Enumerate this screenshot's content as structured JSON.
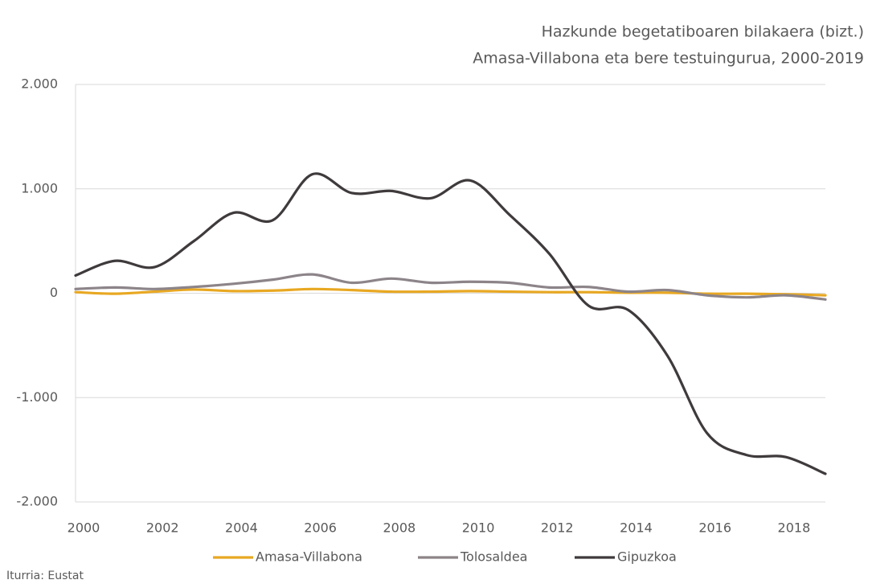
{
  "chart_data": {
    "type": "line",
    "title": "Hazkunde begetatiboaren bilakaera (bizt.)",
    "subtitle": "Amasa-Villabona eta bere testuingurua, 2000-2019",
    "source": "Iturria: Eustat",
    "x": [
      2000,
      2001,
      2002,
      2003,
      2004,
      2005,
      2006,
      2007,
      2008,
      2009,
      2010,
      2011,
      2012,
      2013,
      2014,
      2015,
      2016,
      2017,
      2018,
      2019
    ],
    "xlim": [
      2000,
      2019
    ],
    "xticks": [
      2000,
      2002,
      2004,
      2006,
      2008,
      2010,
      2012,
      2014,
      2016,
      2018
    ],
    "ylim": [
      -2000,
      2000
    ],
    "yticks": [
      {
        "value": -2000,
        "label": "-2.000"
      },
      {
        "value": -1000,
        "label": "-1.000"
      },
      0,
      {
        "value": 1000,
        "label": "1.000"
      },
      {
        "value": 2000,
        "label": "2.000"
      }
    ],
    "grid": true,
    "smooth": true,
    "legend": "bottom",
    "series": [
      {
        "name": "Amasa-Villabona",
        "color": "#e8a822",
        "values": [
          10,
          -5,
          15,
          35,
          20,
          25,
          40,
          30,
          15,
          15,
          20,
          15,
          10,
          10,
          5,
          5,
          -5,
          -5,
          -10,
          -20
        ]
      },
      {
        "name": "Tolosaldea",
        "color": "#8c8489",
        "values": [
          40,
          55,
          40,
          60,
          90,
          130,
          180,
          100,
          140,
          100,
          110,
          100,
          55,
          60,
          15,
          30,
          -20,
          -40,
          -20,
          -60
        ]
      },
      {
        "name": "Gipuzkoa",
        "color": "#3f3a3c",
        "values": [
          170,
          310,
          250,
          500,
          770,
          700,
          1140,
          960,
          980,
          910,
          1080,
          750,
          380,
          -120,
          -160,
          -600,
          -1340,
          -1550,
          -1570,
          -1730
        ]
      }
    ]
  }
}
